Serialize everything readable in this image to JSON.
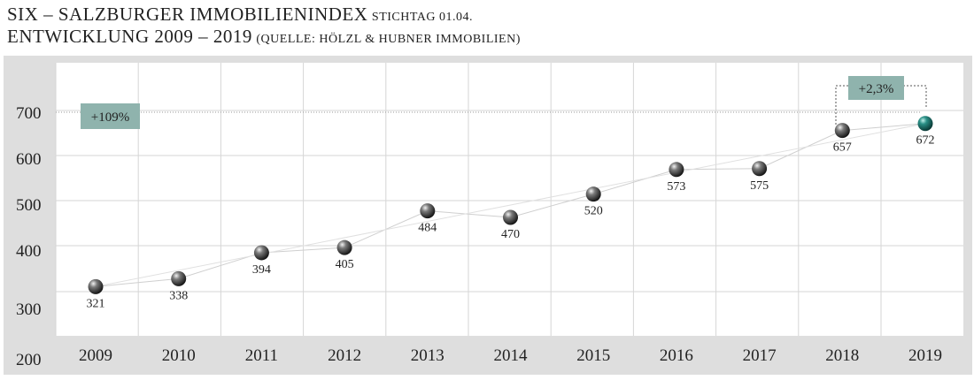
{
  "title": {
    "line1_main": "SIX – SALZBURGER IMMOBILIENINDEX",
    "line1_sub": "STICHTAG 01.04.",
    "line2_main": "ENTWICKLUNG 2009 – 2019",
    "line2_sub": "(QUELLE: HÖLZL & HUBNER IMMOBILIEN)"
  },
  "colors": {
    "panel_bg": "#dedede",
    "plot_bg": "#ffffff",
    "grid": "#d6d6d6",
    "marker": "#3a3a3a",
    "highlight_marker": "#1c6f68",
    "annotation_box": "#8fb3ad"
  },
  "chart_data": {
    "type": "scatter",
    "categories": [
      "2009",
      "2010",
      "2011",
      "2012",
      "2013",
      "2014",
      "2015",
      "2016",
      "2017",
      "2018",
      "2019"
    ],
    "values": [
      321,
      338,
      394,
      405,
      484,
      470,
      520,
      573,
      575,
      657,
      672
    ],
    "data_labels": [
      "321",
      "338",
      "394",
      "405",
      "484",
      "470",
      "520",
      "573",
      "575",
      "657",
      "672"
    ],
    "y_ticks": [
      "700",
      "600",
      "500",
      "400",
      "300",
      "200"
    ],
    "ylim": [
      200,
      700
    ],
    "grid": true,
    "highlight_index": 10,
    "annotations": [
      {
        "text": "+109%"
      },
      {
        "text": "+2,3%"
      }
    ]
  }
}
